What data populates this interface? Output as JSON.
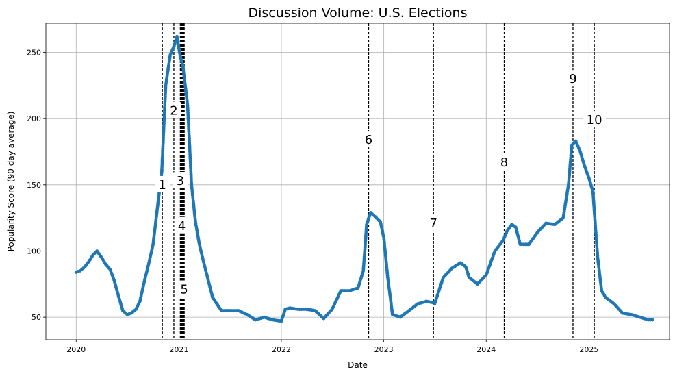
{
  "chart_data": {
    "type": "line",
    "title": "Discussion Volume: U.S. Elections",
    "xlabel": "Date",
    "ylabel": "Popularity Score (90 day average)",
    "x_ticks": [
      "2020",
      "2021",
      "2022",
      "2023",
      "2024",
      "2025"
    ],
    "y_ticks": [
      50,
      100,
      150,
      200,
      250
    ],
    "xlim": [
      "2019-09-15",
      "2025-10-15"
    ],
    "ylim": [
      33,
      272
    ],
    "grid": true,
    "colors": {
      "series": "#1f77b4",
      "event_line": "#000000"
    },
    "series": [
      {
        "x": [
          "2020-01-01",
          "2020-01-15",
          "2020-02-01",
          "2020-02-15",
          "2020-03-01",
          "2020-03-15",
          "2020-04-01",
          "2020-04-15",
          "2020-05-01",
          "2020-05-15",
          "2020-06-01",
          "2020-06-15",
          "2020-07-01",
          "2020-07-15",
          "2020-08-01",
          "2020-08-15",
          "2020-09-01",
          "2020-09-15",
          "2020-10-01",
          "2020-10-15",
          "2020-11-01",
          "2020-11-15",
          "2020-12-01",
          "2020-12-15",
          "2020-12-25",
          "2021-01-05",
          "2021-01-15",
          "2021-02-01",
          "2021-02-15",
          "2021-03-01",
          "2021-03-15",
          "2021-04-01",
          "2021-05-01",
          "2021-06-01",
          "2021-07-01",
          "2021-08-01",
          "2021-09-01",
          "2021-10-01",
          "2021-11-01",
          "2021-12-01",
          "2022-01-01",
          "2022-01-15",
          "2022-02-01",
          "2022-03-01",
          "2022-04-01",
          "2022-05-01",
          "2022-06-01",
          "2022-07-01",
          "2022-08-01",
          "2022-09-01",
          "2022-10-01",
          "2022-10-20",
          "2022-11-01",
          "2022-11-15",
          "2022-12-01",
          "2022-12-20",
          "2023-01-01",
          "2023-01-15",
          "2023-02-01",
          "2023-03-01",
          "2023-04-01",
          "2023-05-01",
          "2023-06-01",
          "2023-06-25",
          "2023-07-01",
          "2023-08-01",
          "2023-09-01",
          "2023-10-01",
          "2023-10-20",
          "2023-11-01",
          "2023-12-01",
          "2024-01-01",
          "2024-02-01",
          "2024-03-01",
          "2024-03-15",
          "2024-04-01",
          "2024-04-15",
          "2024-05-01",
          "2024-06-01",
          "2024-07-01",
          "2024-08-01",
          "2024-09-01",
          "2024-10-01",
          "2024-10-20",
          "2024-11-01",
          "2024-11-15",
          "2024-12-01",
          "2024-12-15",
          "2025-01-01",
          "2025-01-15",
          "2025-02-01",
          "2025-02-15",
          "2025-03-01",
          "2025-04-01",
          "2025-05-01",
          "2025-06-01",
          "2025-07-01",
          "2025-08-01",
          "2025-08-15"
        ],
        "y": [
          84,
          85,
          88,
          92,
          97,
          100,
          95,
          90,
          86,
          78,
          65,
          55,
          52,
          53,
          56,
          62,
          78,
          90,
          105,
          130,
          160,
          225,
          248,
          255,
          262,
          248,
          240,
          210,
          150,
          122,
          105,
          90,
          65,
          55,
          55,
          55,
          52,
          48,
          50,
          48,
          47,
          56,
          57,
          56,
          56,
          55,
          49,
          56,
          70,
          70,
          72,
          85,
          120,
          129,
          126,
          122,
          110,
          80,
          52,
          50,
          55,
          60,
          62,
          61,
          60,
          80,
          87,
          91,
          88,
          80,
          75,
          82,
          100,
          108,
          115,
          120,
          118,
          105,
          105,
          114,
          121,
          120,
          125,
          150,
          180,
          183,
          175,
          165,
          155,
          145,
          95,
          70,
          65,
          60,
          53,
          52,
          50,
          48,
          48
        ]
      }
    ],
    "events": [
      {
        "label": "1",
        "date": "2020-11-03",
        "y": 150
      },
      {
        "label": "2",
        "date": "2020-12-14",
        "y": 206
      },
      {
        "label": "3",
        "date": "2021-01-06",
        "y": 153
      },
      {
        "label": "4",
        "date": "2021-01-11",
        "y": 119
      },
      {
        "label": "5",
        "date": "2021-01-20",
        "y": 71
      },
      {
        "label": "6",
        "date": "2022-11-08",
        "y": 184
      },
      {
        "label": "7",
        "date": "2023-06-27",
        "y": 121
      },
      {
        "label": "8",
        "date": "2024-03-05",
        "y": 167
      },
      {
        "label": "9",
        "date": "2024-11-05",
        "y": 230
      },
      {
        "label": "10",
        "date": "2025-01-20",
        "y": 199
      }
    ],
    "extra_lines": [
      "2021-01-08",
      "2021-01-14",
      "2021-01-17"
    ]
  }
}
